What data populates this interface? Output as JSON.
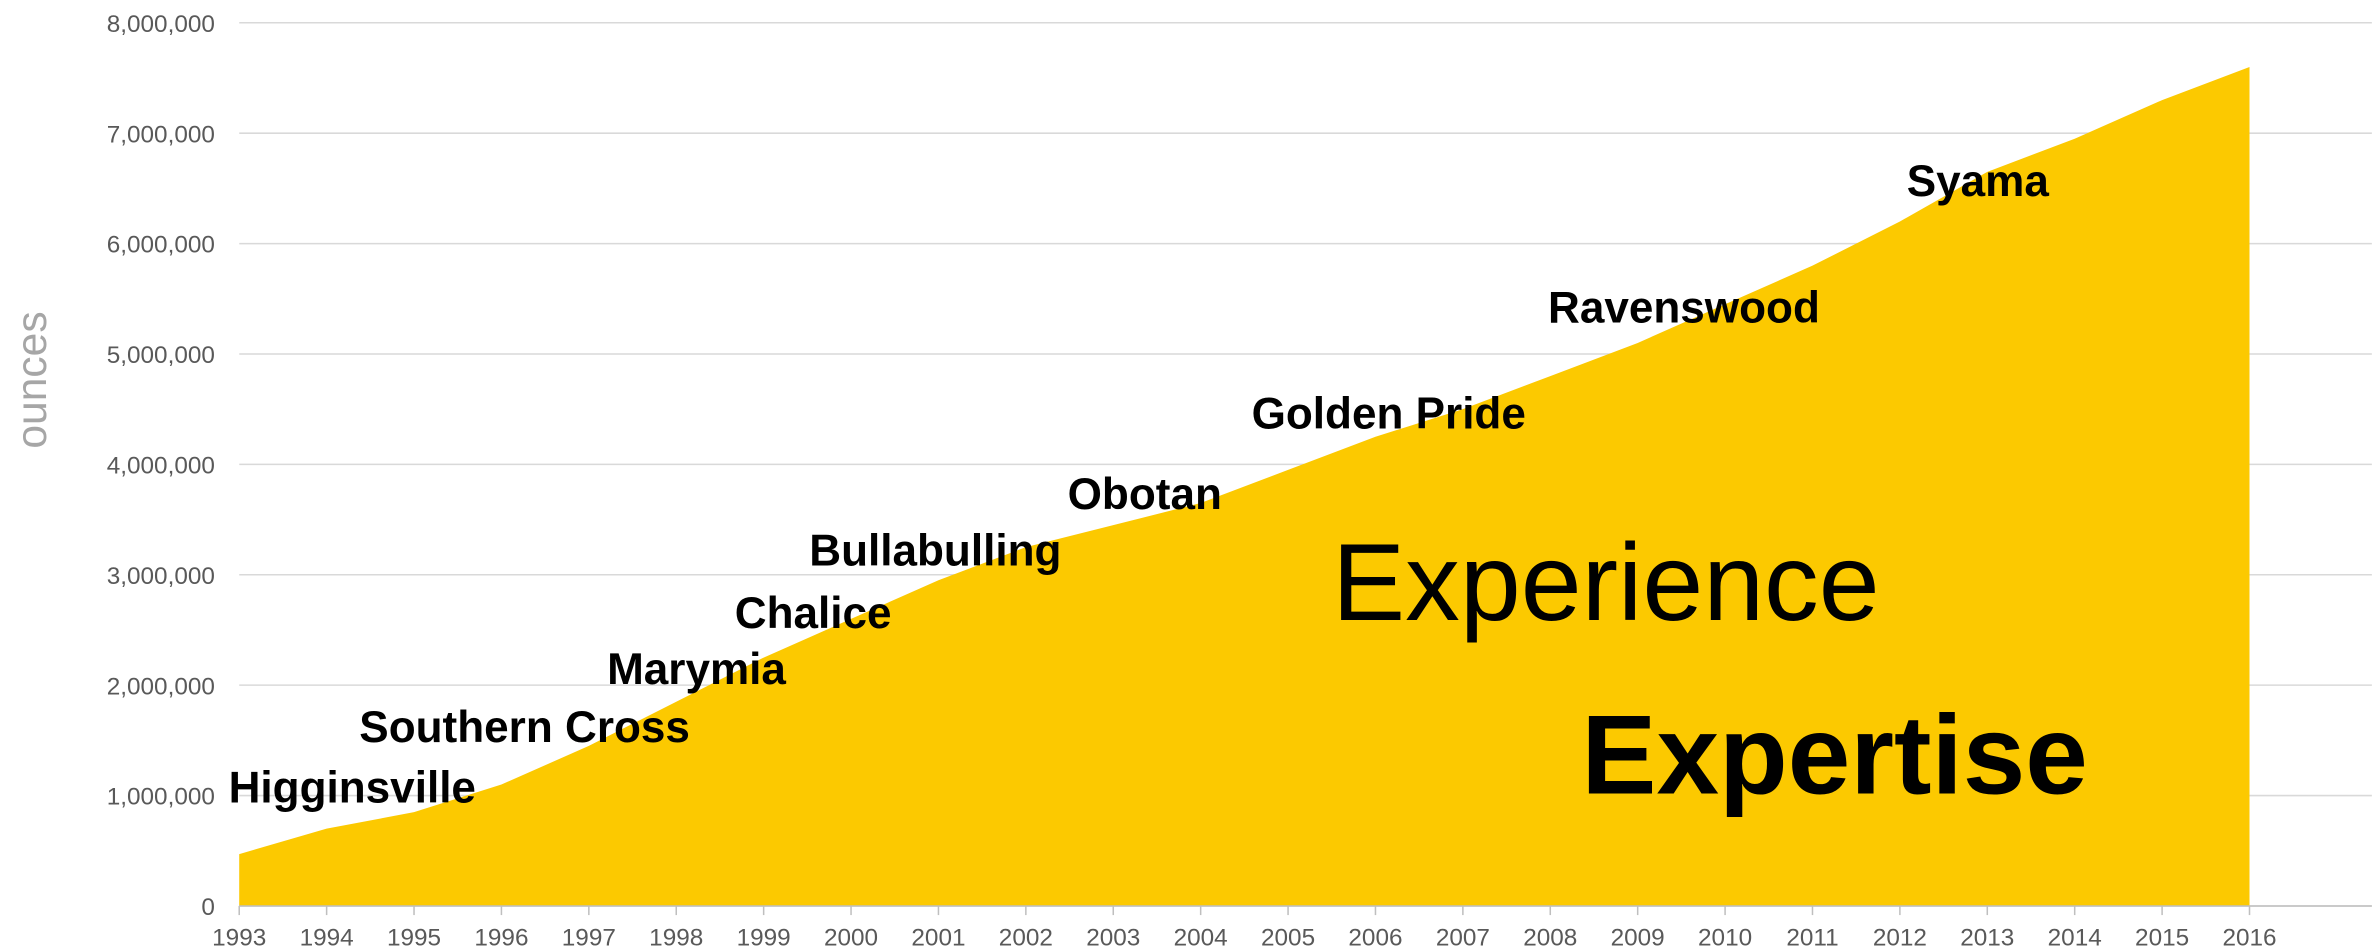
{
  "chart_data": {
    "type": "area",
    "y_label": "ounces",
    "color": "#fcc900",
    "grid": true,
    "x": [
      1993,
      1994,
      1995,
      1996,
      1997,
      1998,
      1999,
      2000,
      2001,
      2002,
      2003,
      2004,
      2005,
      2006,
      2007,
      2008,
      2009,
      2010,
      2011,
      2012,
      2013,
      2014,
      2015,
      2016
    ],
    "values": [
      470000,
      700000,
      850000,
      1100000,
      1450000,
      1850000,
      2250000,
      2600000,
      2950000,
      3250000,
      3450000,
      3650000,
      3950000,
      4250000,
      4500000,
      4800000,
      5100000,
      5450000,
      5800000,
      6200000,
      6650000,
      6950000,
      7300000,
      7600000
    ],
    "xlim": [
      1993,
      2017.4
    ],
    "xticks": [
      1993,
      1994,
      1995,
      1996,
      1997,
      1998,
      1999,
      2000,
      2001,
      2002,
      2003,
      2004,
      2005,
      2006,
      2007,
      2008,
      2009,
      2010,
      2011,
      2012,
      2013,
      2014,
      2015,
      2016
    ],
    "ylim": [
      0,
      8000000
    ],
    "yticks": [
      0,
      {
        "value": 1000000,
        "label": "1,000,000"
      },
      {
        "value": 2000000,
        "label": "2,000,000"
      },
      {
        "value": 3000000,
        "label": "3,000,000"
      },
      {
        "value": 4000000,
        "label": "4,000,000"
      },
      {
        "value": 5000000,
        "label": "5,000,000"
      },
      {
        "value": 6000000,
        "label": "6,000,000"
      },
      {
        "value": 7000000,
        "label": "7,000,000"
      },
      {
        "value": 8000000,
        "label": "8,000,000"
      }
    ],
    "annotations": [
      "Higginsville",
      "Southern Cross",
      "Marymia",
      "Chalice",
      "Bullabulling",
      "Obotan",
      "Golden Pride",
      "Ravenswood",
      "Syama",
      "Experience",
      "Expertise"
    ]
  }
}
